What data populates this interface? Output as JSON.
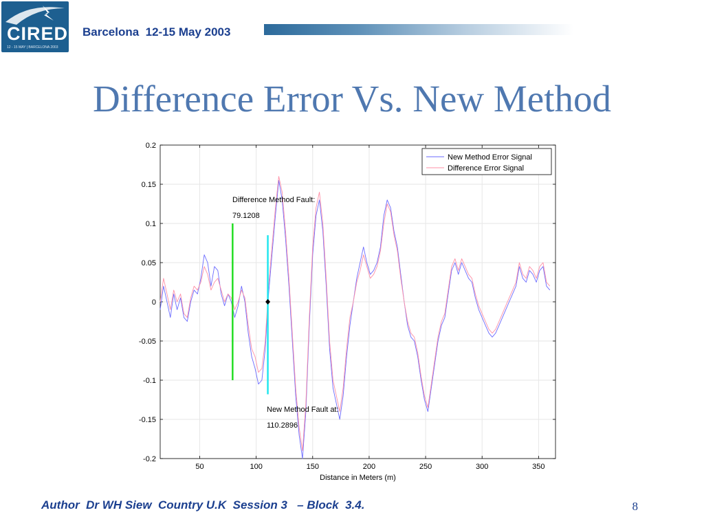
{
  "header": {
    "logo_text": "CIRED",
    "logo_subtext": "12 - 15 MAY | BARCELONA 2003",
    "conference": "Barcelona  12-15 May 2003"
  },
  "slide": {
    "title": "Difference Error Vs. New Method",
    "page_number": "8"
  },
  "footer": {
    "text": "Author  Dr WH Siew  Country U.K  Session 3   – Block  3.4."
  },
  "colors": {
    "title": "#4f78b0",
    "header_text": "#1b3f8f",
    "logo_bg": "#1d5f90",
    "new_method_signal": "#6a6aff",
    "difference_signal": "#ff8fa6",
    "difference_fault_marker": "#22dd22",
    "new_method_fault_marker": "#22e6ee"
  },
  "chart_data": {
    "type": "line",
    "xlabel": "Distance in Meters (m)",
    "ylabel": "",
    "xlim": [
      15,
      365
    ],
    "ylim": [
      -0.2,
      0.2
    ],
    "xticks": [
      50,
      100,
      150,
      200,
      250,
      300,
      350
    ],
    "xtick_labels": [
      "50",
      "100",
      "150",
      "200",
      "250",
      "300",
      "350"
    ],
    "yticks": [
      0.2,
      0.15,
      0.1,
      0.05,
      0,
      -0.05,
      -0.1,
      -0.15,
      -0.2
    ],
    "ytick_labels": [
      "0.2",
      "0.15",
      "0.1",
      "0.05",
      "0",
      "-0.05",
      "-0.1",
      "-0.15",
      "-0.2"
    ],
    "grid": true,
    "legend_position": "top-right",
    "series": [
      {
        "name": "New Method Error Signal",
        "x": [
          15,
          18,
          21,
          24,
          27,
          30,
          33,
          36,
          39,
          42,
          45,
          48,
          51,
          54,
          57,
          60,
          63,
          66,
          69,
          72,
          75,
          78,
          81,
          84,
          87,
          90,
          93,
          96,
          99,
          102,
          105,
          108,
          111,
          114,
          117,
          120,
          123,
          126,
          129,
          132,
          135,
          138,
          141,
          144,
          147,
          150,
          153,
          156,
          159,
          162,
          165,
          168,
          171,
          174,
          177,
          180,
          183,
          186,
          189,
          192,
          195,
          198,
          201,
          204,
          207,
          210,
          213,
          216,
          219,
          222,
          225,
          228,
          231,
          234,
          237,
          240,
          243,
          246,
          249,
          252,
          255,
          258,
          261,
          264,
          267,
          270,
          273,
          276,
          279,
          282,
          285,
          288,
          291,
          294,
          297,
          300,
          303,
          306,
          309,
          312,
          315,
          318,
          321,
          324,
          327,
          330,
          333,
          336,
          339,
          342,
          345,
          348,
          351,
          354,
          357,
          360
        ],
        "y": [
          -0.01,
          0.02,
          0.0,
          -0.02,
          0.01,
          -0.01,
          0.005,
          -0.02,
          -0.025,
          0.0,
          0.015,
          0.01,
          0.03,
          0.06,
          0.05,
          0.02,
          0.045,
          0.04,
          0.01,
          -0.005,
          0.01,
          0.0,
          -0.02,
          -0.005,
          0.02,
          0.0,
          -0.04,
          -0.07,
          -0.085,
          -0.105,
          -0.1,
          -0.06,
          0.01,
          0.06,
          0.11,
          0.155,
          0.13,
          0.08,
          0.02,
          -0.05,
          -0.12,
          -0.17,
          -0.2,
          -0.14,
          -0.03,
          0.06,
          0.11,
          0.13,
          0.09,
          0.02,
          -0.06,
          -0.11,
          -0.13,
          -0.15,
          -0.12,
          -0.07,
          -0.03,
          0.0,
          0.03,
          0.05,
          0.07,
          0.05,
          0.035,
          0.04,
          0.05,
          0.07,
          0.11,
          0.13,
          0.12,
          0.09,
          0.07,
          0.035,
          0.0,
          -0.03,
          -0.045,
          -0.05,
          -0.07,
          -0.1,
          -0.125,
          -0.14,
          -0.11,
          -0.08,
          -0.05,
          -0.03,
          -0.02,
          0.01,
          0.04,
          0.05,
          0.035,
          0.05,
          0.04,
          0.03,
          0.025,
          0.005,
          -0.01,
          -0.02,
          -0.03,
          -0.04,
          -0.045,
          -0.04,
          -0.03,
          -0.02,
          -0.01,
          0.0,
          0.01,
          0.02,
          0.045,
          0.03,
          0.025,
          0.04,
          0.035,
          0.025,
          0.04,
          0.045,
          0.02,
          0.015
        ]
      },
      {
        "name": "Difference Error Signal",
        "x": [
          15,
          18,
          21,
          24,
          27,
          30,
          33,
          36,
          39,
          42,
          45,
          48,
          51,
          54,
          57,
          60,
          63,
          66,
          69,
          72,
          75,
          78,
          81,
          84,
          87,
          90,
          93,
          96,
          99,
          102,
          105,
          108,
          111,
          114,
          117,
          120,
          123,
          126,
          129,
          132,
          135,
          138,
          141,
          144,
          147,
          150,
          153,
          156,
          159,
          162,
          165,
          168,
          171,
          174,
          177,
          180,
          183,
          186,
          189,
          192,
          195,
          198,
          201,
          204,
          207,
          210,
          213,
          216,
          219,
          222,
          225,
          228,
          231,
          234,
          237,
          240,
          243,
          246,
          249,
          252,
          255,
          258,
          261,
          264,
          267,
          270,
          273,
          276,
          279,
          282,
          285,
          288,
          291,
          294,
          297,
          300,
          303,
          306,
          309,
          312,
          315,
          318,
          321,
          324,
          327,
          330,
          333,
          336,
          339,
          342,
          345,
          348,
          351,
          354,
          357,
          360
        ],
        "y": [
          0.0,
          0.03,
          0.01,
          -0.01,
          0.015,
          0.0,
          0.01,
          -0.015,
          -0.02,
          0.005,
          0.02,
          0.015,
          0.025,
          0.045,
          0.035,
          0.015,
          0.025,
          0.03,
          0.015,
          0.0,
          0.01,
          0.005,
          -0.01,
          0.0,
          0.015,
          0.005,
          -0.03,
          -0.06,
          -0.07,
          -0.09,
          -0.085,
          -0.05,
          0.02,
          0.07,
          0.12,
          0.16,
          0.14,
          0.09,
          0.03,
          -0.04,
          -0.11,
          -0.16,
          -0.19,
          -0.13,
          -0.02,
          0.07,
          0.12,
          0.14,
          0.1,
          0.03,
          -0.05,
          -0.1,
          -0.12,
          -0.14,
          -0.11,
          -0.06,
          -0.02,
          0.0,
          0.025,
          0.04,
          0.06,
          0.045,
          0.03,
          0.035,
          0.045,
          0.065,
          0.1,
          0.125,
          0.115,
          0.085,
          0.065,
          0.03,
          0.0,
          -0.025,
          -0.04,
          -0.045,
          -0.065,
          -0.095,
          -0.12,
          -0.135,
          -0.105,
          -0.075,
          -0.045,
          -0.025,
          -0.015,
          0.015,
          0.045,
          0.055,
          0.04,
          0.055,
          0.045,
          0.035,
          0.03,
          0.01,
          -0.005,
          -0.015,
          -0.025,
          -0.035,
          -0.04,
          -0.035,
          -0.025,
          -0.015,
          -0.005,
          0.005,
          0.015,
          0.025,
          0.05,
          0.035,
          0.03,
          0.045,
          0.04,
          0.03,
          0.045,
          0.05,
          0.025,
          0.02
        ]
      }
    ],
    "fault_markers": [
      {
        "x": 79.1208,
        "y_top": 0.1,
        "y_bottom": -0.1
      },
      {
        "x": 110.2896,
        "y_top": 0.085,
        "y_bottom": -0.118
      }
    ],
    "center_marker": {
      "x": 110.2896,
      "y": 0.0
    },
    "annotations": [
      {
        "line1": "Difference Method Fault:",
        "line2": "79.1208"
      },
      {
        "line1": "New Method Fault at:",
        "line2": "110.2896"
      }
    ]
  }
}
